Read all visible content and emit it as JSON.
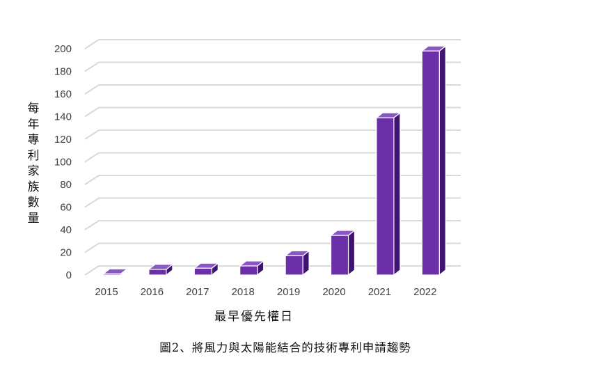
{
  "chart_data": {
    "type": "bar",
    "categories": [
      "2015",
      "2016",
      "2017",
      "2018",
      "2019",
      "2020",
      "2021",
      "2022"
    ],
    "series": [
      {
        "values": [
          1,
          5,
          6,
          8,
          17,
          35,
          139,
          198
        ]
      }
    ],
    "ylabel": "每年專利家族數量",
    "xlabel": "最早優先權日",
    "yticks": [
      0,
      20,
      40,
      60,
      80,
      100,
      120,
      140,
      160,
      180,
      200
    ],
    "ylim": [
      0,
      200
    ],
    "grid": true,
    "style": "3d-column"
  },
  "caption": "圖2、將風力與太陽能結合的技術專利申請趨勢",
  "colors": {
    "bar_front": "#6b30a8",
    "bar_top": "#8a55c4",
    "bar_side": "#3e1470",
    "bar_edge": "#ffffff",
    "grid": "#d9d9d9",
    "tick_text": "#404040"
  }
}
